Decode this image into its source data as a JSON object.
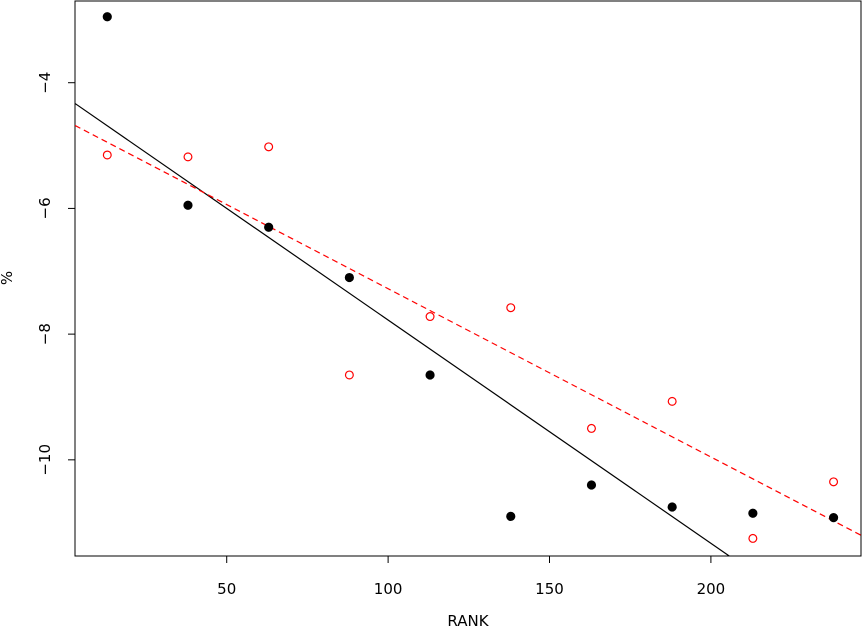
{
  "chart_data": {
    "type": "scatter",
    "title": "",
    "xlabel": "RANK",
    "ylabel": "%",
    "xlim": [
      3,
      246.5
    ],
    "ylim": [
      -11.53,
      -2.7
    ],
    "x_ticks": [
      50,
      100,
      150,
      200
    ],
    "y_ticks": [
      -4,
      -6,
      -8,
      -10
    ],
    "x_tick_labels": [
      "50",
      "100",
      "150",
      "200"
    ],
    "y_tick_labels": [
      "−4",
      "−6",
      "−8",
      "−10"
    ],
    "grid": false,
    "legend": "none",
    "series": [
      {
        "marker": "filled-circle",
        "color": "#000000",
        "x": [
          13,
          38,
          63,
          88,
          113,
          138,
          163,
          188,
          213,
          238
        ],
        "y": [
          -2.95,
          -5.95,
          -6.3,
          -7.1,
          -8.65,
          -10.9,
          -10.4,
          -10.75,
          -10.85,
          -10.92
        ]
      },
      {
        "marker": "open-circle",
        "color": "#ff0000",
        "x": [
          13,
          38,
          63,
          88,
          113,
          138,
          163,
          188,
          213,
          238
        ],
        "y": [
          -5.15,
          -5.18,
          -5.02,
          -8.65,
          -7.72,
          -7.58,
          -9.5,
          -9.07,
          -11.25,
          -10.35
        ]
      }
    ],
    "fit_lines": [
      {
        "style": "solid",
        "color": "#000000",
        "x": [
          3,
          246.5
        ],
        "y": [
          -4.33,
          -12.98
        ]
      },
      {
        "style": "dashed",
        "color": "#ff0000",
        "x": [
          3,
          246.5
        ],
        "y": [
          -4.68,
          -11.2
        ]
      }
    ]
  }
}
